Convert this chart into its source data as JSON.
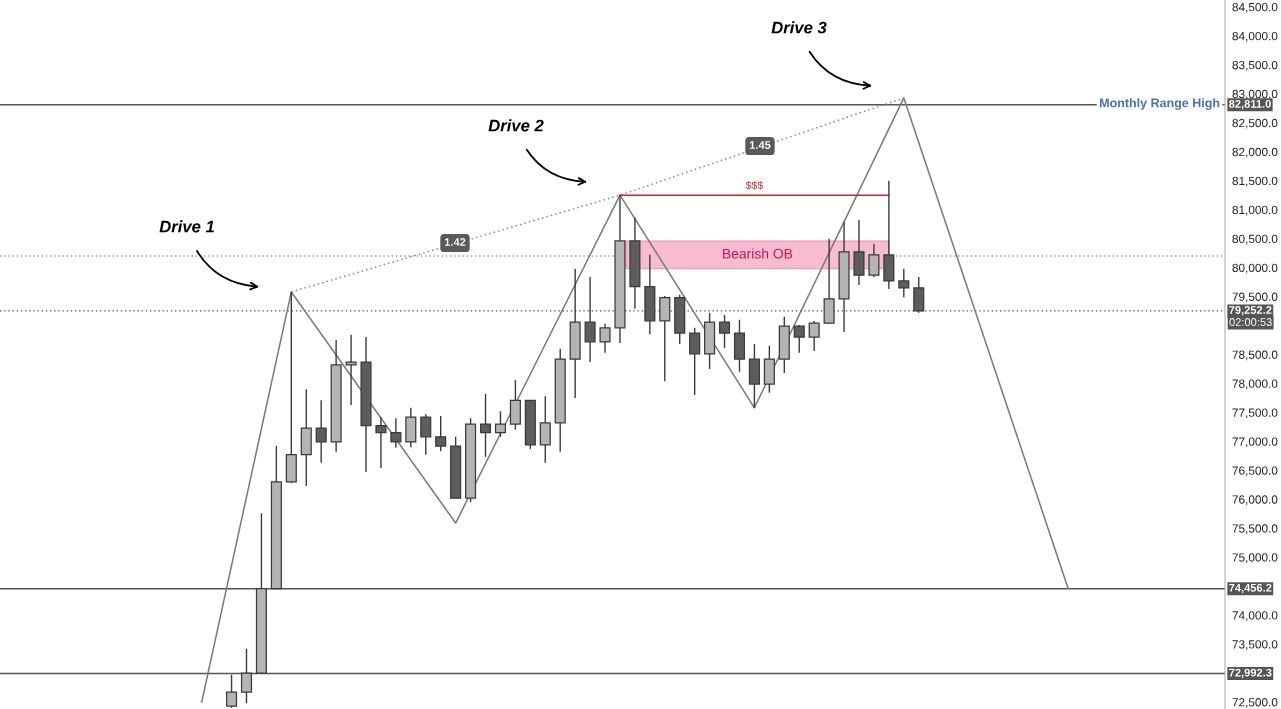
{
  "chart_data": {
    "type": "candlestick",
    "categories": [
      null,
      null,
      null,
      null,
      null,
      null,
      null,
      null,
      null,
      null,
      null,
      null,
      null,
      null,
      null,
      null,
      null,
      null,
      null,
      null,
      null,
      null,
      null,
      null,
      null,
      null,
      null,
      null,
      null,
      null,
      null,
      null,
      null,
      null,
      null,
      null,
      null,
      null,
      null,
      null,
      null,
      null,
      null,
      null,
      null,
      null,
      null,
      null,
      null,
      null,
      null,
      null,
      null,
      null,
      null,
      null,
      null,
      null,
      null,
      null,
      null,
      null,
      null,
      null,
      null,
      null,
      null,
      null,
      null,
      null,
      null,
      null,
      null,
      null,
      null,
      null,
      null,
      null,
      null,
      null,
      null,
      null
    ],
    "ohlc": [
      null,
      null,
      null,
      null,
      null,
      null,
      null,
      null,
      null,
      null,
      null,
      null,
      null,
      null,
      null,
      [
        72430,
        72970,
        72400,
        72670
      ],
      [
        72670,
        73420,
        72480,
        73000
      ],
      [
        73000,
        75760,
        73000,
        74460
      ],
      [
        74460,
        76920,
        74460,
        76300
      ],
      [
        76300,
        79580,
        76280,
        76770
      ],
      [
        76770,
        77900,
        76230,
        77230
      ],
      [
        77230,
        77710,
        76630,
        76990
      ],
      [
        76990,
        78750,
        76820,
        78320
      ],
      [
        78320,
        78840,
        77630,
        78370
      ],
      [
        78370,
        78800,
        76470,
        77270
      ],
      [
        77270,
        77420,
        76540,
        77150
      ],
      [
        77150,
        77400,
        76890,
        76990
      ],
      [
        76990,
        77580,
        76900,
        77420
      ],
      [
        77420,
        77470,
        76770,
        77080
      ],
      [
        77080,
        77440,
        76830,
        76920
      ],
      [
        76920,
        77080,
        76020,
        76020
      ],
      [
        76020,
        77400,
        75950,
        77300
      ],
      [
        77300,
        77820,
        76730,
        77150
      ],
      [
        77150,
        77520,
        77080,
        77300
      ],
      [
        77300,
        78060,
        77200,
        77710
      ],
      [
        77710,
        77710,
        76870,
        76940
      ],
      [
        76940,
        77780,
        76630,
        77320
      ],
      [
        77320,
        78600,
        76820,
        78420
      ],
      [
        78420,
        79980,
        77750,
        79060
      ],
      [
        79060,
        79840,
        78370,
        78720
      ],
      [
        78720,
        79030,
        78530,
        78960
      ],
      [
        78960,
        81250,
        78700,
        80460
      ],
      [
        80460,
        80870,
        79290,
        79670
      ],
      [
        79670,
        80220,
        78850,
        79080
      ],
      [
        79080,
        79510,
        78040,
        79480
      ],
      [
        79480,
        79530,
        78680,
        78870
      ],
      [
        78870,
        78960,
        77800,
        78510
      ],
      [
        78510,
        79220,
        78250,
        79060
      ],
      [
        79060,
        79180,
        78610,
        78870
      ],
      [
        78870,
        79100,
        78200,
        78420
      ],
      [
        78420,
        78680,
        77580,
        77990
      ],
      [
        77990,
        78650,
        77840,
        78420
      ],
      [
        78420,
        79150,
        78180,
        78990
      ],
      [
        78990,
        79010,
        78530,
        78800
      ],
      [
        78800,
        79080,
        78560,
        79040
      ],
      [
        79040,
        80500,
        79030,
        79460
      ],
      [
        79460,
        80790,
        78890,
        80270
      ],
      [
        80270,
        80820,
        79700,
        79870
      ],
      [
        79870,
        80410,
        79840,
        80220
      ],
      [
        80220,
        81500,
        79630,
        79770
      ],
      [
        79770,
        79980,
        79490,
        79650
      ],
      [
        79650,
        79840,
        79220,
        79252.2
      ],
      null,
      null,
      null,
      null,
      null,
      null,
      null,
      null,
      null,
      null,
      null,
      null,
      null,
      null,
      null,
      null,
      null,
      null,
      null,
      null
    ],
    "colors": [
      null,
      null,
      null,
      null,
      null,
      null,
      null,
      null,
      null,
      null,
      null,
      null,
      null,
      null,
      null,
      "#b4b4b4",
      "#b4b4b4",
      "#b4b4b4",
      "#b4b4b4",
      "#b4b4b4",
      "#b4b4b4",
      "#5d5d5d",
      "#b4b4b4",
      "#b4b4b4",
      "#5d5d5d",
      "#5d5d5d",
      "#5d5d5d",
      "#b4b4b4",
      "#5d5d5d",
      "#5d5d5d",
      "#5d5d5d",
      "#b4b4b4",
      "#5d5d5d",
      "#b4b4b4",
      "#b4b4b4",
      "#5d5d5d",
      "#b4b4b4",
      "#b4b4b4",
      "#b4b4b4",
      "#5d5d5d",
      "#b4b4b4",
      "#b4b4b4",
      "#5d5d5d",
      "#5d5d5d",
      "#b4b4b4",
      "#5d5d5d",
      "#5d5d5d",
      "#b4b4b4",
      "#5d5d5d",
      "#5d5d5d",
      "#5d5d5d",
      "#b4b4b4",
      "#b4b4b4",
      "#5d5d5d",
      "#b4b4b4",
      "#b4b4b4",
      "#b4b4b4",
      "#5d5d5d",
      "#b4b4b4",
      "#5d5d5d",
      "#5d5d5d",
      "#5d5d5d",
      null,
      null,
      null,
      null,
      null,
      null,
      null,
      null,
      null,
      null,
      null,
      null,
      null,
      null,
      null,
      null,
      null,
      null,
      null,
      null
    ],
    "series": [
      {
        "type": "line",
        "color": "#7a7a7a",
        "line_style": "solid",
        "values": [
          null,
          null,
          null,
          null,
          null,
          null,
          null,
          null,
          null,
          null,
          null,
          null,
          null,
          72500,
          null,
          null,
          null,
          null,
          null,
          79580,
          null,
          null,
          null,
          null,
          null,
          null,
          null,
          null,
          null,
          null,
          75590,
          null,
          null,
          null,
          null,
          null,
          null,
          null,
          null,
          null,
          null,
          81250,
          null,
          null,
          null,
          null,
          null,
          null,
          null,
          null,
          77580,
          null,
          null,
          null,
          null,
          null,
          null,
          null,
          null,
          null,
          82930,
          null,
          null,
          null,
          null,
          null,
          null,
          null,
          null,
          null,
          null,
          74460,
          null,
          null,
          null,
          null,
          null,
          null,
          null,
          null,
          null,
          null
        ]
      },
      {
        "type": "line",
        "color": "#8a8a8a",
        "line_style": "dotted",
        "values": [
          null,
          null,
          null,
          null,
          null,
          null,
          null,
          null,
          null,
          null,
          null,
          null,
          null,
          null,
          null,
          null,
          null,
          null,
          null,
          79580,
          null,
          null,
          null,
          null,
          null,
          null,
          null,
          null,
          null,
          null,
          null,
          null,
          null,
          null,
          null,
          null,
          null,
          null,
          null,
          null,
          null,
          81250,
          null,
          null,
          null,
          null,
          null,
          null,
          null,
          null,
          null,
          null,
          null,
          null,
          null,
          null,
          null,
          null,
          null,
          null,
          82930,
          null,
          null,
          null,
          null,
          null,
          null,
          null,
          null,
          null,
          null,
          null,
          null,
          null,
          null,
          null,
          null,
          null,
          null,
          null,
          null,
          null
        ]
      },
      {
        "type": "line",
        "name": "$$$",
        "color": "#c62828",
        "line_style": "solid",
        "values": [
          null,
          null,
          null,
          null,
          null,
          null,
          null,
          null,
          null,
          null,
          null,
          null,
          null,
          null,
          null,
          null,
          null,
          null,
          null,
          null,
          null,
          null,
          null,
          null,
          null,
          null,
          null,
          null,
          null,
          null,
          null,
          null,
          null,
          null,
          null,
          null,
          null,
          null,
          null,
          null,
          null,
          81250,
          81250,
          81250,
          81250,
          81250,
          81250,
          81250,
          81250,
          81250,
          81250,
          81250,
          81250,
          81250,
          81250,
          81250,
          81250,
          81250,
          81250,
          81250,
          null,
          null,
          null,
          null,
          null,
          null,
          null,
          null,
          null,
          null,
          null,
          null,
          null,
          null,
          null,
          null,
          null,
          null,
          null,
          null,
          null,
          null
        ]
      }
    ],
    "bands": [
      {
        "axis": "y",
        "from": 79980,
        "to": 80460,
        "label": "Bearish OB",
        "color": "#f8bbd0"
      }
    ],
    "ref_lines": [
      {
        "axis": "y",
        "value": 82811.0,
        "label": "82,811.0",
        "color": "#555555",
        "line_style": "solid"
      },
      {
        "axis": "y",
        "value": 80200,
        "color": "#9a9a9a",
        "line_style": "dotted"
      },
      {
        "axis": "y",
        "value": 79252.2,
        "label": "79,252.2",
        "color": "#555555",
        "line_style": "dotted"
      },
      {
        "axis": "y",
        "value": 74456.2,
        "label": "74,456.2",
        "color": "#555555",
        "line_style": "solid"
      },
      {
        "axis": "y",
        "value": 72992.3,
        "label": "72,992.3",
        "color": "#555555",
        "line_style": "solid"
      }
    ],
    "annotations": [
      "Drive 1",
      "Drive 2",
      "Drive 3",
      "1.42",
      "1.45",
      "Monthly Range High",
      "02:00:53"
    ],
    "ylim": [
      72380,
      84620
    ],
    "yticks": [
      {
        "value": 72500,
        "label": "72,500.0"
      },
      {
        "value": 73500,
        "label": "73,500.0"
      },
      {
        "value": 74000,
        "label": "74,000.0"
      },
      {
        "value": 75000,
        "label": "75,000.0"
      },
      {
        "value": 75500,
        "label": "75,500.0"
      },
      {
        "value": 76000,
        "label": "76,000.0"
      },
      {
        "value": 76500,
        "label": "76,500.0"
      },
      {
        "value": 77000,
        "label": "77,000.0"
      },
      {
        "value": 77500,
        "label": "77,500.0"
      },
      {
        "value": 78000,
        "label": "78,000.0"
      },
      {
        "value": 78500,
        "label": "78,500.0"
      },
      {
        "value": 79500,
        "label": "79,500.0"
      },
      {
        "value": 80000,
        "label": "80,000.0"
      },
      {
        "value": 80500,
        "label": "80,500.0"
      },
      {
        "value": 81000,
        "label": "81,000.0"
      },
      {
        "value": 81500,
        "label": "81,500.0"
      },
      {
        "value": 82000,
        "label": "82,000.0"
      },
      {
        "value": 82500,
        "label": "82,500.0"
      },
      {
        "value": 83000,
        "label": "83,000.0"
      },
      {
        "value": 83500,
        "label": "83,500.0"
      },
      {
        "value": 84000,
        "label": "84,000.0"
      },
      {
        "value": 84500,
        "label": "84,500.0"
      }
    ],
    "tick_labels": "y",
    "grid": false
  }
}
